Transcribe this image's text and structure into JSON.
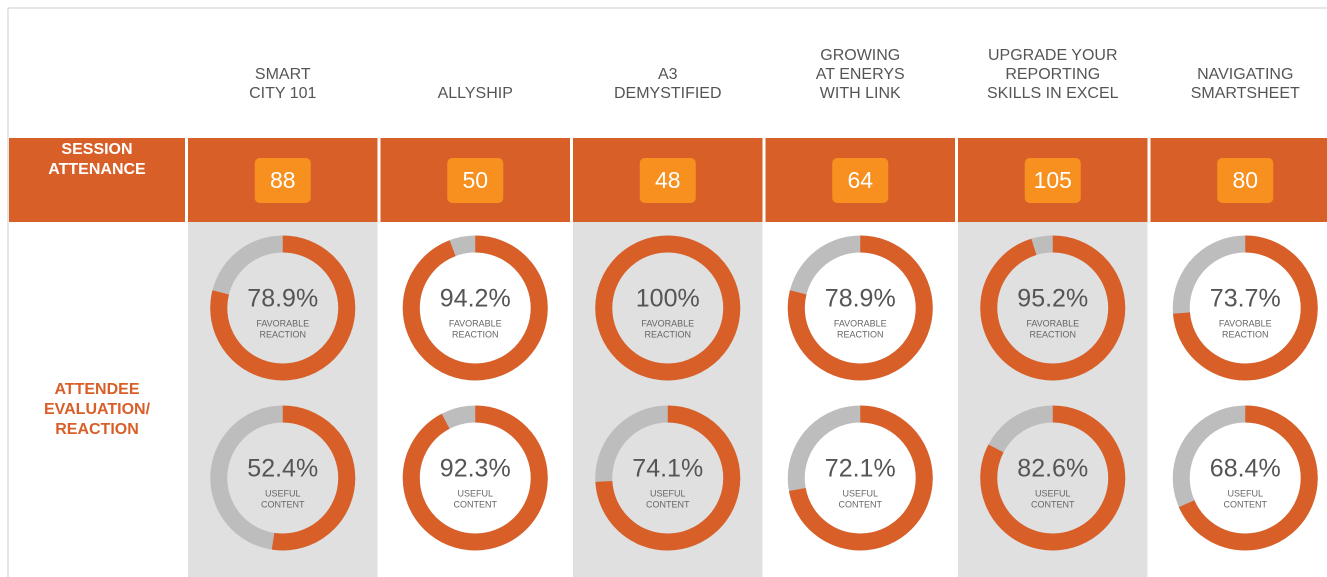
{
  "row_labels": {
    "attendance": [
      "SESSION",
      "ATTENANCE"
    ],
    "evaluation": [
      "ATTENDEE",
      "EVALUATION/",
      "REACTION"
    ]
  },
  "metric_labels": {
    "favorable": [
      "FAVORABLE",
      "REACTION"
    ],
    "useful": [
      "USEFUL",
      "CONTENT"
    ]
  },
  "sessions": [
    {
      "name": [
        "SMART",
        "CITY 101"
      ],
      "attendance": 88,
      "favorable": 78.9,
      "favorable_label": "78.9%",
      "useful": 52.4,
      "useful_label": "52.4%"
    },
    {
      "name": [
        "ALLYSHIP"
      ],
      "attendance": 50,
      "favorable": 94.2,
      "favorable_label": "94.2%",
      "useful": 92.3,
      "useful_label": "92.3%"
    },
    {
      "name": [
        "A3",
        "DEMYSTIFIED"
      ],
      "attendance": 48,
      "favorable": 100,
      "favorable_label": "100%",
      "useful": 74.1,
      "useful_label": "74.1%"
    },
    {
      "name": [
        "GROWING",
        "AT ENERYS",
        "WITH LINK"
      ],
      "attendance": 64,
      "favorable": 78.9,
      "favorable_label": "78.9%",
      "useful": 72.1,
      "useful_label": "72.1%"
    },
    {
      "name": [
        "UPGRADE YOUR",
        "REPORTING",
        "SKILLS IN EXCEL"
      ],
      "attendance": 105,
      "favorable": 95.2,
      "favorable_label": "95.2%",
      "useful": 82.6,
      "useful_label": "82.6%"
    },
    {
      "name": [
        "NAVIGATING",
        "SMARTSHEET"
      ],
      "attendance": 80,
      "favorable": 73.7,
      "favorable_label": "73.7%",
      "useful": 68.4,
      "useful_label": "68.4%"
    }
  ]
}
